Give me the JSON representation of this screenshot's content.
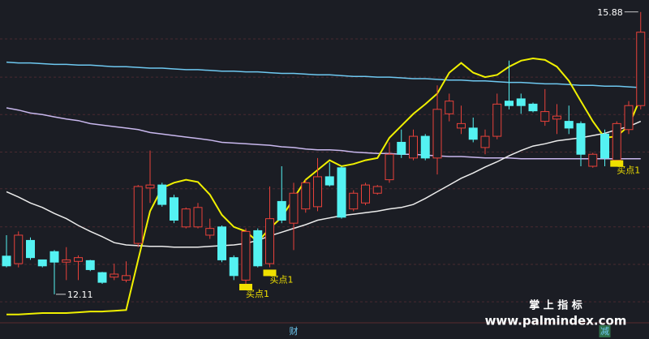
{
  "chart_data": {
    "type": "candlestick",
    "ylim": [
      11.73,
      16.04
    ],
    "hgrid": [
      15.52,
      15.01,
      14.51,
      14.01,
      13.52,
      13.01,
      12.51,
      12.01
    ],
    "up_color": "#e8413a",
    "down_color": "#54f2f2",
    "candles": {
      "open": [
        12.62,
        12.52,
        12.83,
        12.57,
        12.68,
        12.54,
        12.55,
        12.56,
        12.4,
        12.34,
        12.3,
        12.79,
        13.53,
        13.57,
        13.4,
        13.01,
        13.01,
        12.9,
        13.01,
        12.6,
        12.3,
        12.96,
        12.52,
        13.35,
        13.06,
        13.25,
        13.28,
        13.68,
        13.8,
        13.25,
        13.33,
        13.46,
        13.64,
        14.14,
        13.93,
        14.22,
        13.93,
        14.52,
        14.33,
        14.33,
        14.07,
        14.22,
        14.69,
        14.72,
        14.65,
        14.42,
        14.45,
        14.42,
        14.39,
        13.82,
        14.25,
        13.9,
        14.31,
        14.63
      ],
      "high": [
        12.9,
        12.95,
        12.87,
        12.57,
        12.7,
        12.74,
        12.63,
        12.57,
        12.41,
        12.52,
        12.55,
        13.57,
        14.03,
        13.6,
        13.44,
        13.27,
        13.33,
        13.12,
        13.03,
        12.63,
        12.99,
        12.99,
        13.55,
        13.82,
        13.6,
        13.64,
        13.93,
        13.87,
        13.82,
        13.5,
        13.6,
        13.57,
        14.14,
        14.31,
        14.31,
        14.25,
        14.9,
        14.79,
        14.63,
        14.47,
        14.31,
        14.79,
        15.23,
        14.79,
        14.67,
        14.85,
        14.65,
        14.63,
        14.42,
        14.0,
        14.31,
        14.42,
        14.69,
        15.88
      ],
      "low": [
        12.47,
        12.47,
        12.57,
        12.47,
        12.11,
        12.3,
        12.3,
        12.42,
        12.25,
        12.3,
        12.27,
        12.74,
        13.33,
        13.28,
        13.06,
        12.99,
        12.99,
        12.85,
        12.54,
        12.3,
        12.25,
        12.47,
        12.47,
        13.06,
        12.7,
        13.2,
        13.22,
        13.55,
        13.12,
        13.22,
        13.3,
        13.44,
        13.6,
        13.93,
        13.9,
        13.9,
        13.71,
        14.42,
        14.25,
        14.14,
        13.98,
        14.18,
        14.58,
        14.52,
        14.54,
        14.36,
        14.25,
        14.25,
        13.82,
        13.8,
        13.82,
        13.82,
        14.25,
        14.58
      ],
      "close": [
        12.49,
        12.9,
        12.6,
        12.49,
        12.54,
        12.57,
        12.6,
        12.44,
        12.27,
        12.38,
        12.36,
        13.55,
        13.57,
        13.31,
        13.1,
        13.25,
        13.27,
        12.99,
        12.57,
        12.36,
        12.95,
        12.49,
        13.12,
        13.1,
        13.46,
        13.6,
        13.68,
        13.57,
        13.14,
        13.46,
        13.57,
        13.55,
        13.98,
        13.98,
        14.22,
        13.93,
        14.58,
        14.69,
        14.39,
        14.18,
        14.22,
        14.65,
        14.63,
        14.63,
        14.56,
        14.55,
        14.49,
        14.33,
        13.98,
        13.98,
        13.93,
        14.39,
        14.63,
        15.61
      ]
    },
    "lines": [
      {
        "color": "#6ec8f0",
        "values": [
          15.21,
          15.2,
          15.2,
          15.19,
          15.18,
          15.18,
          15.17,
          15.17,
          15.16,
          15.15,
          15.15,
          15.14,
          15.13,
          15.13,
          15.12,
          15.11,
          15.11,
          15.1,
          15.09,
          15.09,
          15.08,
          15.08,
          15.07,
          15.06,
          15.06,
          15.05,
          15.04,
          15.04,
          15.03,
          15.02,
          15.02,
          15.01,
          15.01,
          15.0,
          14.99,
          14.99,
          14.98,
          14.97,
          14.97,
          14.96,
          14.96,
          14.95,
          14.94,
          14.94,
          14.93,
          14.92,
          14.92,
          14.91,
          14.9,
          14.9,
          14.89,
          14.89,
          14.88,
          14.87
        ]
      },
      {
        "color": "#c9b8ee",
        "values": [
          14.6,
          14.57,
          14.53,
          14.51,
          14.48,
          14.45,
          14.43,
          14.39,
          14.37,
          14.35,
          14.33,
          14.31,
          14.27,
          14.25,
          14.23,
          14.21,
          14.19,
          14.17,
          14.14,
          14.13,
          14.12,
          14.11,
          14.1,
          14.08,
          14.07,
          14.05,
          14.04,
          14.04,
          14.03,
          14.01,
          14.0,
          13.99,
          13.99,
          13.98,
          13.98,
          13.97,
          13.96,
          13.95,
          13.95,
          13.94,
          13.93,
          13.93,
          13.93,
          13.92,
          13.92,
          13.92,
          13.92,
          13.92,
          13.92,
          13.92,
          13.92,
          13.92,
          13.92,
          13.92
        ]
      },
      {
        "color": "#ececec",
        "values": [
          13.48,
          13.41,
          13.33,
          13.27,
          13.19,
          13.12,
          13.03,
          12.95,
          12.88,
          12.8,
          12.77,
          12.76,
          12.75,
          12.75,
          12.74,
          12.74,
          12.74,
          12.75,
          12.76,
          12.77,
          12.79,
          12.83,
          12.89,
          12.94,
          12.99,
          13.04,
          13.1,
          13.13,
          13.16,
          13.18,
          13.2,
          13.22,
          13.25,
          13.27,
          13.31,
          13.39,
          13.48,
          13.57,
          13.66,
          13.73,
          13.81,
          13.88,
          13.96,
          14.03,
          14.09,
          14.12,
          14.16,
          14.18,
          14.2,
          14.23,
          14.26,
          14.31,
          14.35,
          14.42
        ]
      },
      {
        "color": "#f0f000",
        "values": [
          11.84,
          11.84,
          11.85,
          11.86,
          11.86,
          11.86,
          11.87,
          11.88,
          11.88,
          11.89,
          11.9,
          12.57,
          13.22,
          13.53,
          13.6,
          13.64,
          13.61,
          13.44,
          13.17,
          13.01,
          12.95,
          12.81,
          12.99,
          13.14,
          13.39,
          13.64,
          13.77,
          13.9,
          13.82,
          13.85,
          13.9,
          13.93,
          14.2,
          14.36,
          14.52,
          14.65,
          14.79,
          15.07,
          15.2,
          15.07,
          15.01,
          15.04,
          15.15,
          15.23,
          15.26,
          15.24,
          15.15,
          14.96,
          14.69,
          14.42,
          14.2,
          14.22,
          14.36,
          14.74
        ]
      }
    ],
    "high_label": 15.88,
    "low_label": 12.11,
    "annotations": [
      {
        "label": "买点1",
        "x": 20,
        "y": 12.25
      },
      {
        "label": "买点1",
        "x": 22,
        "y": 12.44
      },
      {
        "label": "买点1",
        "x": 51,
        "y": 13.9
      }
    ],
    "markers": [
      {
        "label": "财",
        "x": 24
      },
      {
        "label": "减",
        "x": 50
      }
    ],
    "watermark": {
      "title": "掌 上 指 标",
      "url": "www.palmindex.com"
    }
  }
}
